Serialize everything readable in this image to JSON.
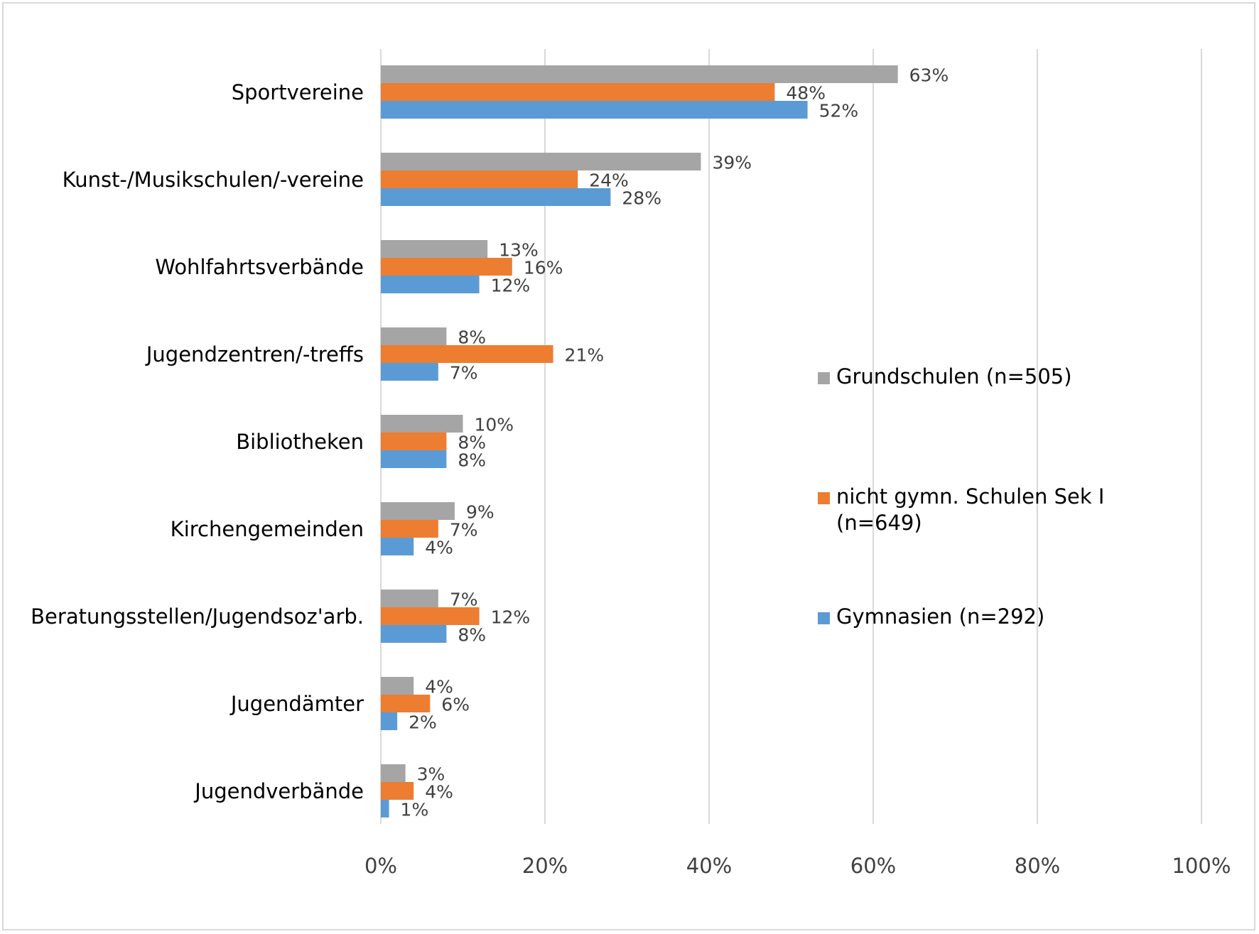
{
  "chart_data": {
    "type": "bar",
    "orientation": "horizontal",
    "title": "",
    "xlabel": "",
    "ylabel": "",
    "xlim": [
      0,
      100
    ],
    "x_ticks": [
      0,
      20,
      40,
      60,
      80,
      100
    ],
    "x_tick_labels": [
      "0%",
      "20%",
      "40%",
      "60%",
      "80%",
      "100%"
    ],
    "value_suffix": "%",
    "grid": "vertical",
    "legend_position": "right",
    "categories": [
      "Sportvereine",
      "Kunst-/Musikschulen/-vereine",
      "Wohlfahrtsverbände",
      "Jugendzentren/-treffs",
      "Bibliotheken",
      "Kirchengemeinden",
      "Beratungsstellen/Jugendsoz'arb.",
      "Jugendämter",
      "Jugendverbände"
    ],
    "series": [
      {
        "name": "Grundschulen (n=505)",
        "legend_lines": [
          "Grundschulen (n=505)"
        ],
        "color": "#a5a5a5",
        "values": [
          63,
          39,
          13,
          8,
          10,
          9,
          7,
          4,
          3
        ]
      },
      {
        "name": "nicht gymn. Schulen Sek I (n=649)",
        "legend_lines": [
          "nicht gymn. Schulen Sek I",
          "(n=649)"
        ],
        "color": "#ed7d31",
        "values": [
          48,
          24,
          16,
          21,
          8,
          7,
          12,
          6,
          4
        ]
      },
      {
        "name": "Gymnasien (n=292)",
        "legend_lines": [
          "Gymnasien (n=292)"
        ],
        "color": "#5b9bd5",
        "values": [
          52,
          28,
          12,
          7,
          8,
          4,
          8,
          2,
          1
        ]
      }
    ]
  }
}
